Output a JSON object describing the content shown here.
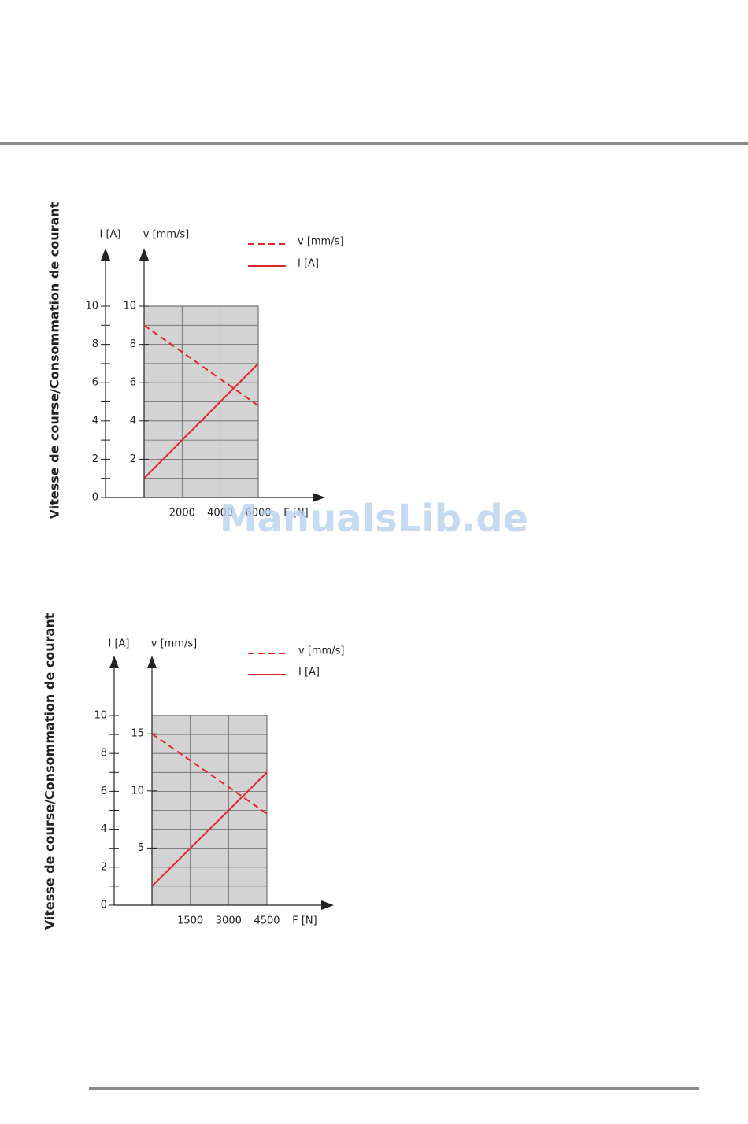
{
  "watermark": "ManualsLib.de",
  "chart_data": [
    {
      "type": "line",
      "y_title": "Vitesse de course/Consommation de courant",
      "x_label": "F [N]",
      "y_label": "I [A]",
      "y2_label": "v [mm/s]",
      "x": [
        0,
        6000
      ],
      "xlim": [
        0,
        6000
      ],
      "xticks": [
        2000,
        4000,
        6000
      ],
      "ylim": [
        0,
        10
      ],
      "yticks": [
        0,
        2,
        4,
        6,
        8,
        10
      ],
      "yminorticks": [
        1,
        3,
        5,
        7,
        9
      ],
      "y2lim": [
        0,
        10
      ],
      "y2ticks": [
        2,
        4,
        6,
        8,
        10
      ],
      "grid": true,
      "series": [
        {
          "name": "v [mm/s]",
          "color": "#e0262b",
          "dashed": true,
          "axis": "y2",
          "values": [
            9,
            4.8
          ]
        },
        {
          "name": "I [A]",
          "color": "#e0262b",
          "dashed": false,
          "values": [
            1,
            7
          ]
        }
      ]
    },
    {
      "type": "line",
      "y_title": "Vitesse de course/Consommation de courant",
      "x_label": "F [N]",
      "y_label": "I [A]",
      "y2_label": "v [mm/s]",
      "x": [
        0,
        4500
      ],
      "xlim": [
        0,
        4500
      ],
      "xticks": [
        1500,
        3000,
        4500
      ],
      "ylim": [
        0,
        10
      ],
      "yticks": [
        0,
        2,
        4,
        6,
        8,
        10
      ],
      "yminorticks": [
        1,
        3,
        5,
        7,
        9
      ],
      "y2lim": [
        0,
        16.6
      ],
      "y2ticks": [
        5,
        10,
        15
      ],
      "grid": true,
      "series": [
        {
          "name": "v [mm/s]",
          "color": "#e0262b",
          "dashed": true,
          "axis": "y2",
          "values": [
            15,
            8
          ]
        },
        {
          "name": "I [A]",
          "color": "#e0262b",
          "dashed": false,
          "values": [
            1,
            7
          ]
        }
      ]
    }
  ]
}
